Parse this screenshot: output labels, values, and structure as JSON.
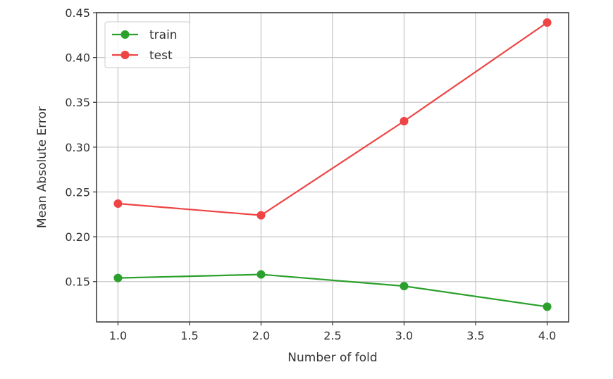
{
  "chart_data": {
    "type": "line",
    "title": "",
    "xlabel": "Number of fold",
    "ylabel": "Mean Absolute Error",
    "x": [
      1.0,
      2.0,
      3.0,
      4.0
    ],
    "series": [
      {
        "name": "train",
        "color": "#2ca02c",
        "values": [
          0.154,
          0.158,
          0.145,
          0.122
        ]
      },
      {
        "name": "test",
        "color": "#ee4444",
        "values": [
          0.237,
          0.224,
          0.329,
          0.439
        ]
      }
    ],
    "xlim": [
      0.85,
      4.15
    ],
    "ylim": [
      0.105,
      0.45
    ],
    "x_ticks": [
      "1.0",
      "1.5",
      "2.0",
      "2.5",
      "3.0",
      "3.5",
      "4.0"
    ],
    "x_tick_values": [
      1.0,
      1.5,
      2.0,
      2.5,
      3.0,
      3.5,
      4.0
    ],
    "y_ticks": [
      "0.15",
      "0.20",
      "0.25",
      "0.30",
      "0.35",
      "0.40",
      "0.45"
    ],
    "y_tick_values": [
      0.15,
      0.2,
      0.25,
      0.3,
      0.35,
      0.4,
      0.45
    ],
    "grid": true,
    "legend_position": "top-left"
  }
}
